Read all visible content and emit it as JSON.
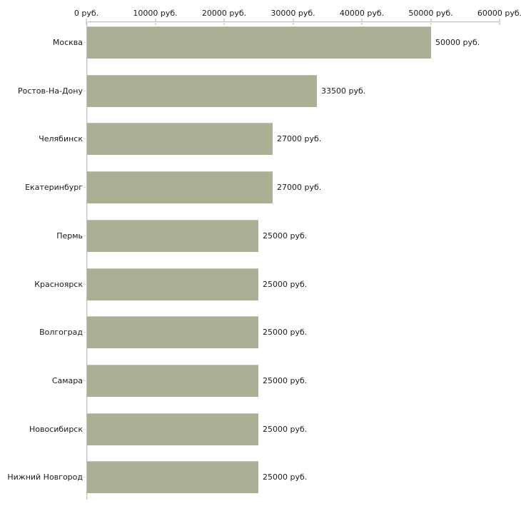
{
  "chart_data": {
    "type": "bar",
    "orientation": "horizontal",
    "unit": "руб.",
    "categories": [
      "Москва",
      "Ростов-На-Дону",
      "Челябинск",
      "Екатеринбург",
      "Пермь",
      "Красноярск",
      "Волгоград",
      "Самара",
      "Новосибирск",
      "Нижний Новгород"
    ],
    "values": [
      50000,
      33500,
      27000,
      27000,
      25000,
      25000,
      25000,
      25000,
      25000,
      25000
    ],
    "value_labels": [
      "50000 руб.",
      "33500 руб.",
      "27000 руб.",
      "27000 руб.",
      "25000 руб.",
      "25000 руб.",
      "25000 руб.",
      "25000 руб.",
      "25000 руб.",
      "25000 руб."
    ],
    "xlim": [
      0,
      60000
    ],
    "x_ticks": [
      0,
      10000,
      20000,
      30000,
      40000,
      50000,
      60000
    ],
    "x_tick_labels": [
      "0 руб.",
      "10000 руб.",
      "20000 руб.",
      "30000 руб.",
      "40000 руб.",
      "50000 руб.",
      "60000 руб."
    ],
    "axis_position": "top",
    "grid": false,
    "legend": false,
    "colors": {
      "bar": "#abb094",
      "bar_top_edge": "#c3c6b0",
      "axis_line": "#c2c2c2",
      "tick_mark": "#d8dbc0",
      "text": "#1a1a1a",
      "background": "#ffffff"
    }
  }
}
